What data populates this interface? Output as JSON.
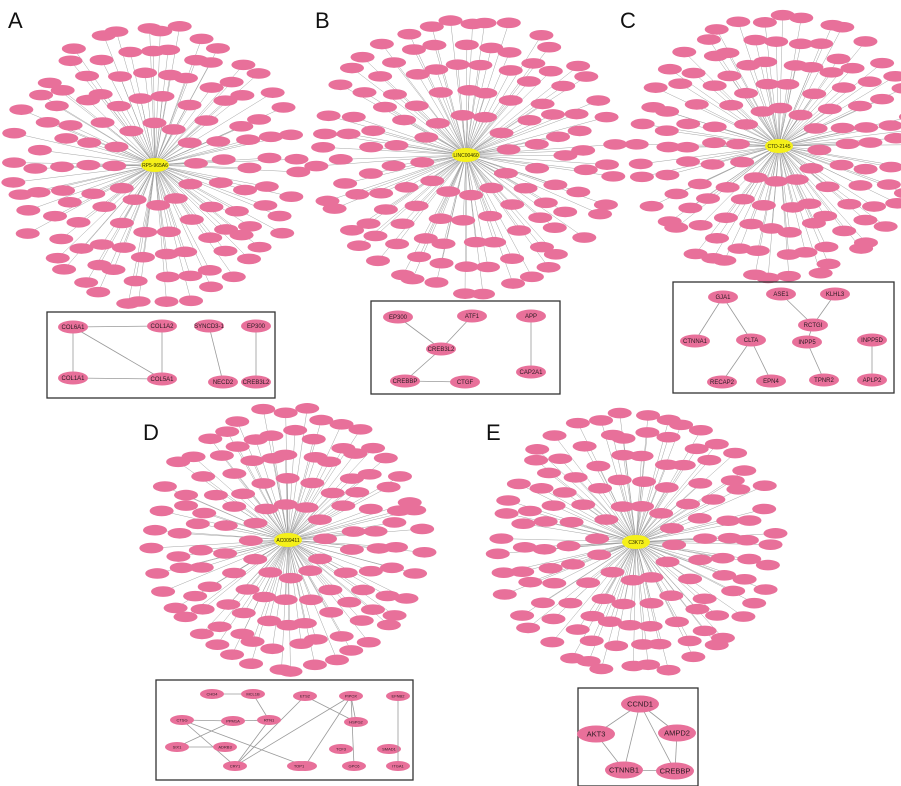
{
  "colors": {
    "node": "#e8709a",
    "hub": "#f5f01a",
    "edge": "#9a9a9a",
    "box": "#333333"
  },
  "panels": [
    {
      "letter": "A",
      "hub": "RP5-965A6",
      "clusters": [
        {
          "nodes": [
            "COL6A1",
            "COL1A2",
            "COL1A1",
            "COL5A1"
          ],
          "edges": [
            [
              0,
              1
            ],
            [
              0,
              2
            ],
            [
              0,
              3
            ],
            [
              2,
              3
            ],
            [
              1,
              3
            ]
          ]
        },
        {
          "nodes": [
            "SYNCD3-1",
            "NECD2"
          ],
          "edges": [
            [
              0,
              1
            ]
          ]
        },
        {
          "nodes": [
            "EP300",
            "CREB3L2"
          ],
          "edges": [
            [
              0,
              1
            ]
          ]
        }
      ]
    },
    {
      "letter": "B",
      "hub": "LINC00460",
      "clusters": [
        {
          "nodes": [
            "EP300",
            "ATF1",
            "CREB3L2",
            "CREBBP",
            "CTGF"
          ],
          "edges": [
            [
              0,
              2
            ],
            [
              1,
              2
            ],
            [
              2,
              3
            ],
            [
              3,
              4
            ]
          ]
        },
        {
          "nodes": [
            "APP",
            "CAP2A1"
          ],
          "edges": [
            [
              0,
              1
            ]
          ]
        }
      ]
    },
    {
      "letter": "C",
      "hub": "CTD-2145",
      "clusters": [
        {
          "nodes": [
            "GJA1",
            "CTNNA1",
            "CLTA",
            "RECAP2",
            "EPN4"
          ],
          "edges": [
            [
              0,
              1
            ],
            [
              0,
              2
            ],
            [
              2,
              3
            ],
            [
              2,
              4
            ]
          ]
        },
        {
          "nodes": [
            "ASE1",
            "KLHL3",
            "RCTGI",
            "INPP5",
            "TPNR2"
          ],
          "edges": [
            [
              0,
              2
            ],
            [
              1,
              2
            ],
            [
              2,
              3
            ],
            [
              3,
              4
            ]
          ]
        },
        {
          "nodes": [
            "INPP5D",
            "APLP2"
          ],
          "edges": [
            [
              0,
              1
            ]
          ]
        }
      ]
    },
    {
      "letter": "D",
      "hub": "AC009411",
      "clusters": [
        {
          "nodes": [
            "CHD4",
            "MCL1B",
            "CTSG",
            "RTN1",
            "PPM1A",
            "CRY1",
            "SIX1",
            "ADRB3",
            "ETS2",
            "PIPOX",
            "HSPG2",
            "STX8",
            "GPC6",
            "SMAD1",
            "TCF3",
            "TOP1"
          ],
          "edges": [
            [
              0,
              1
            ],
            [
              1,
              3
            ],
            [
              3,
              5
            ],
            [
              5,
              2
            ],
            [
              2,
              4
            ],
            [
              4,
              3
            ],
            [
              4,
              6
            ],
            [
              6,
              7
            ],
            [
              5,
              8
            ],
            [
              5,
              9
            ],
            [
              8,
              10
            ],
            [
              9,
              10
            ],
            [
              9,
              11
            ],
            [
              9,
              12
            ],
            [
              2,
              11
            ]
          ]
        },
        {
          "nodes": [
            "EFNB2",
            "ITGA1"
          ],
          "edges": [
            [
              0,
              1
            ]
          ]
        }
      ]
    },
    {
      "letter": "E",
      "hub": "C3K73",
      "clusters": [
        {
          "nodes": [
            "CCND1",
            "AMPD2",
            "AKT3",
            "CTNNB1",
            "CREBBP"
          ],
          "edges": [
            [
              0,
              2
            ],
            [
              0,
              1
            ],
            [
              0,
              3
            ],
            [
              0,
              4
            ],
            [
              2,
              3
            ],
            [
              3,
              4
            ],
            [
              1,
              4
            ]
          ]
        }
      ]
    }
  ]
}
